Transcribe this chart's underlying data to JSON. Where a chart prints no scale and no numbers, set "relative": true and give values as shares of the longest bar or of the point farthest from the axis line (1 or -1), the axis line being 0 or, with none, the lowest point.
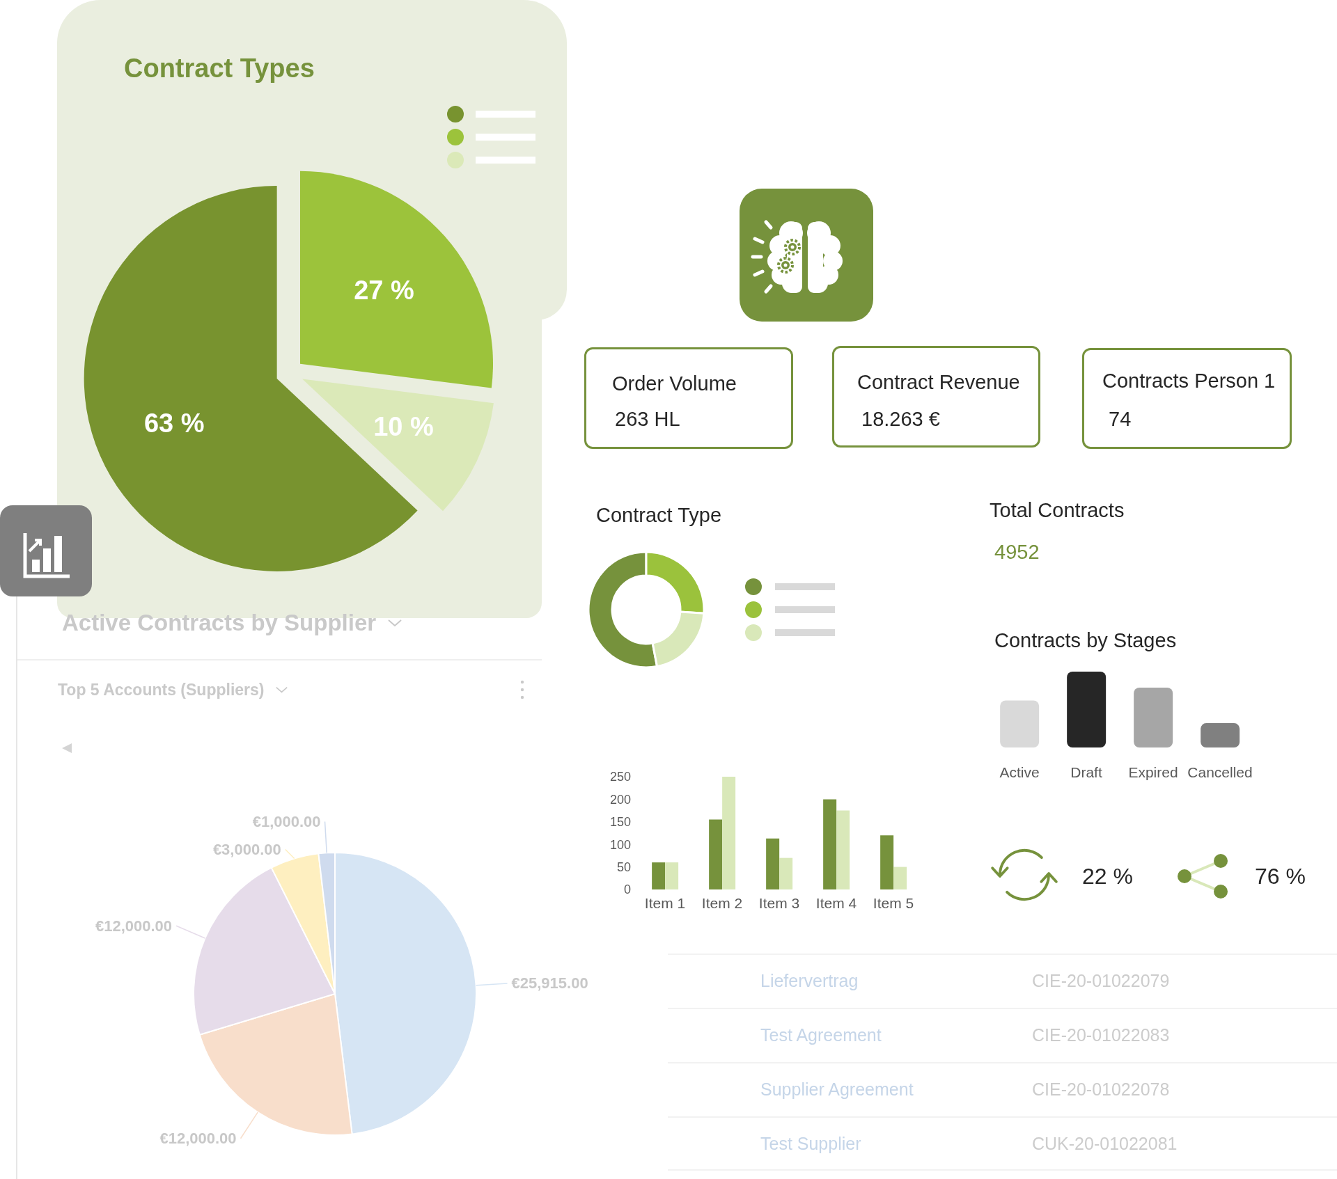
{
  "chart_data": [
    {
      "type": "pie",
      "title": "Contract Types",
      "categories": [
        null,
        null,
        null
      ],
      "values": [
        63,
        27,
        10
      ],
      "colors": [
        "#78932f",
        "#9cc33b",
        "#dbe9b8"
      ],
      "value_labels": [
        "63 %",
        "27 %",
        "10 %"
      ]
    },
    {
      "type": "other",
      "title": "Order Volume",
      "annotations": [
        "263 HL"
      ]
    },
    {
      "type": "other",
      "title": "Contract Revenue",
      "annotations": [
        "18.263 €"
      ]
    },
    {
      "type": "other",
      "title": "Contracts Person 1",
      "annotations": [
        "74"
      ]
    },
    {
      "type": "donut",
      "title": "Contract Type",
      "categories": [
        null,
        null,
        null
      ],
      "values": [
        53,
        26,
        21
      ],
      "colors": [
        "#76923c",
        "#9bc23c",
        "#d9e8b9"
      ]
    },
    {
      "type": "other",
      "title": "Total Contracts",
      "annotations": [
        "4952"
      ]
    },
    {
      "type": "bar",
      "categories": [
        "Item 1",
        "Item 2",
        "Item 3",
        "Item 4",
        "Item 5"
      ],
      "series": [
        {
          "color": "#76923c",
          "values": [
            60,
            155,
            113,
            200,
            120
          ]
        },
        {
          "color": "#d9e8b9",
          "values": [
            60,
            250,
            70,
            175,
            50
          ]
        }
      ],
      "ylim": [
        0,
        250
      ],
      "yticks": [
        0,
        50,
        100,
        150,
        200,
        250
      ]
    },
    {
      "type": "bar",
      "title": "Contracts by Stages",
      "categories": [
        "Active",
        "Draft",
        "Expired",
        "Cancelled"
      ],
      "values": [
        0.62,
        1,
        0.79,
        0.32
      ],
      "colors": [
        "#d9d9d9",
        "#262626",
        "#a6a6a6",
        "#808080"
      ],
      "relative": true
    },
    {
      "type": "other",
      "annotations": [
        "22 %",
        "76 %"
      ]
    },
    {
      "type": "pie",
      "title": "Active Contracts by Supplier",
      "subtitle": "Top 5 Accounts (Suppliers)",
      "categories": [
        null,
        null,
        null,
        null,
        null
      ],
      "values": [
        25915,
        12000,
        12000,
        3000,
        1000
      ],
      "colors": [
        "#d6e5f4",
        "#f8decb",
        "#e6dcea",
        "#feefc0",
        "#cfdbee"
      ],
      "value_labels": [
        "€25,915.00",
        "€12,000.00",
        "€12,000.00",
        "€3,000.00",
        "€1,000.00"
      ]
    },
    {
      "type": "other",
      "annotations": [
        "Liefervertrag",
        "CIE-20-01022079",
        "Test Agreement",
        "CIE-20-01022083",
        "Supplier Agreement",
        "CIE-20-01022078",
        "Test Supplier",
        "CUK-20-01022081"
      ]
    }
  ]
}
